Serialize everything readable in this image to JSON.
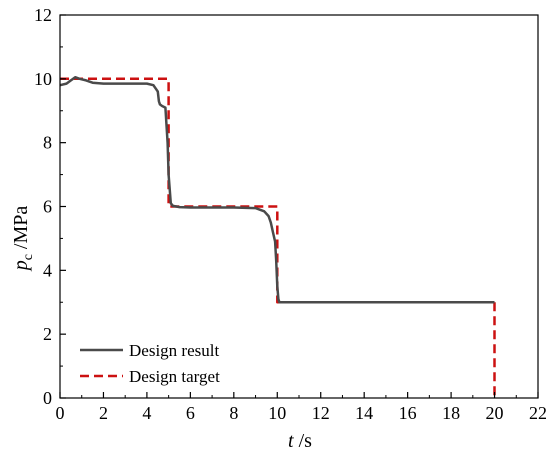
{
  "chart_data": {
    "type": "line",
    "xlabel": "t /s",
    "ylabel": "p_c /MPa",
    "xlim": [
      0,
      22
    ],
    "ylim": [
      0,
      12
    ],
    "xticks": [
      0,
      2,
      4,
      6,
      8,
      10,
      12,
      14,
      16,
      18,
      20,
      22
    ],
    "yticks": [
      0,
      2,
      4,
      6,
      8,
      10,
      12
    ],
    "grid": false,
    "legend_position": "bottom-left",
    "series": [
      {
        "name": "Design result",
        "color": "#4a4a4a",
        "style": "solid",
        "x": [
          0,
          0.3,
          0.5,
          0.7,
          0.9,
          1.2,
          1.5,
          2.0,
          3.0,
          4.0,
          4.3,
          4.5,
          4.55,
          4.6,
          4.7,
          4.85,
          4.95,
          5.0,
          5.1,
          5.2,
          5.5,
          6.0,
          8.0,
          9.0,
          9.4,
          9.6,
          9.7,
          9.8,
          9.9,
          9.95,
          10.0,
          10.05,
          10.1,
          10.2,
          12.0,
          16.0,
          20.0
        ],
        "y": [
          9.8,
          9.85,
          9.95,
          10.05,
          10.0,
          9.95,
          9.88,
          9.85,
          9.85,
          9.85,
          9.8,
          9.6,
          9.3,
          9.2,
          9.15,
          9.1,
          8.0,
          7.0,
          6.1,
          6.02,
          5.98,
          5.97,
          5.97,
          5.95,
          5.85,
          5.7,
          5.5,
          5.2,
          4.9,
          4.3,
          3.5,
          3.1,
          3.0,
          3.0,
          3.0,
          3.0,
          3.0
        ]
      },
      {
        "name": "Design target",
        "color": "#cc1111",
        "style": "dashed",
        "x": [
          0,
          5,
          5,
          10,
          10,
          20,
          20
        ],
        "y": [
          10,
          10,
          6,
          6,
          3,
          3,
          0
        ]
      }
    ]
  },
  "axis_text": {
    "xlabel_italic": "t",
    "xlabel_rest": " /s",
    "ylabel_italic": "p",
    "ylabel_sub": "c",
    "ylabel_rest": " /MPa"
  }
}
